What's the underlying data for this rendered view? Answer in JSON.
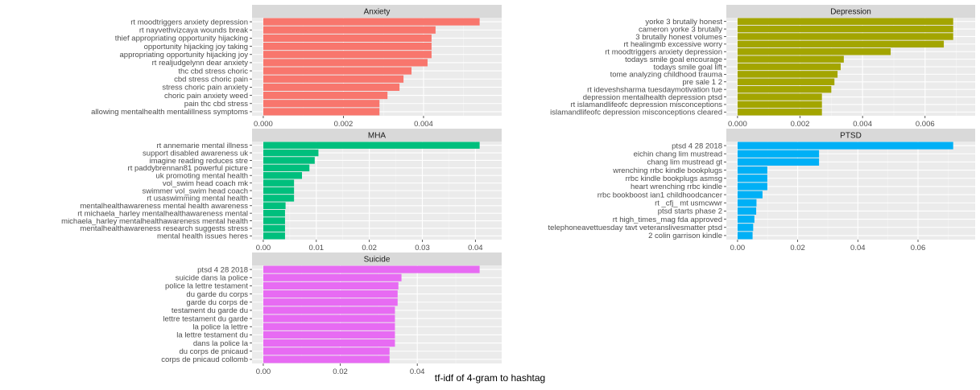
{
  "x_axis_title": "tf-idf of 4-gram to hashtag",
  "chart_data": {
    "type": "bar",
    "orientation": "horizontal",
    "facet_layout": "3 rows x 2 columns, free scales",
    "xlabel": "tf-idf of 4-gram to hashtag",
    "ylabel": "",
    "grid": true,
    "legend": "none",
    "panels": [
      {
        "title": "Anxiety",
        "color": "#F8766D",
        "xlim": [
          0,
          0.0054
        ],
        "ticks": [
          0,
          0.002,
          0.004
        ],
        "tick_labels": [
          "0.000",
          "0.002",
          "0.004"
        ],
        "categories": [
          "rt moodtriggers anxiety depression",
          "rt nayvethvizcaya wounds break",
          "thief appropriating opportunity hijacking",
          "opportunity hijacking joy taking",
          "appropriating opportunity hijacking joy",
          "rt realjudgelynn dear anxiety",
          "thc cbd stress choric",
          "cbd stress choric pain",
          "stress choric pain anxiety",
          "choric pain anxiety weed",
          "pain thc cbd stress",
          "allowing mentalhealth mentalillness symptoms"
        ],
        "values": [
          0.0054,
          0.0043,
          0.0042,
          0.0042,
          0.0042,
          0.0041,
          0.0037,
          0.0035,
          0.0034,
          0.0031,
          0.0029,
          0.0029
        ]
      },
      {
        "title": "Depression",
        "color": "#A3A500",
        "xlim": [
          0,
          0.0069
        ],
        "ticks": [
          0,
          0.002,
          0.004,
          0.006
        ],
        "tick_labels": [
          "0.000",
          "0.002",
          "0.004",
          "0.006"
        ],
        "categories": [
          "yorke 3 brutally honest",
          "cameron yorke 3 brutally",
          "3 brutally honest volumes",
          "rt healingmb excessive worry",
          "rt moodtriggers anxiety depression",
          "todays smile goal encourage",
          "todays smile goal lift",
          "tome analyzing childhood trauma",
          "pre sale 1 2",
          "rt ideveshsharma tuesdaymotivation tue",
          "depression mentalhealth depression ptsd",
          "rt islamandlifeofc depression misconceptions",
          "islamandlifeofc depression misconceptions cleared"
        ],
        "values": [
          0.0069,
          0.0069,
          0.0069,
          0.0066,
          0.0049,
          0.0034,
          0.0033,
          0.0032,
          0.0031,
          0.003,
          0.0027,
          0.0027,
          0.0027
        ]
      },
      {
        "title": "MHA",
        "color": "#00BF7D",
        "xlim": [
          0,
          0.0408
        ],
        "ticks": [
          0,
          0.01,
          0.02,
          0.03,
          0.04
        ],
        "tick_labels": [
          "0.00",
          "0.01",
          "0.02",
          "0.03",
          "0.04"
        ],
        "categories": [
          "rt annemarie mental illness",
          "support disabled awareness uk",
          "imagine reading reduces stre",
          "rt paddybrennan81 powerful picture",
          "uk promoting mental health",
          "vol_swim head coach mk",
          "swimmer vol_swim head coach",
          "rt usaswimming mental health",
          "mentalhealthawareness mental health awareness",
          "rt michaela_harley mentalhealthawareness mental",
          "michaela_harley mentalhealthawareness mental health",
          "mentalhealthawareness research suggests stress",
          "mental health issues heres"
        ],
        "values": [
          0.0408,
          0.0104,
          0.0097,
          0.0087,
          0.0073,
          0.0058,
          0.0058,
          0.0058,
          0.0042,
          0.0041,
          0.0041,
          0.0041,
          0.0041
        ]
      },
      {
        "title": "PTSD",
        "color": "#00B0F6",
        "xlim": [
          0,
          0.0717
        ],
        "ticks": [
          0,
          0.02,
          0.04,
          0.06
        ],
        "tick_labels": [
          "0.00",
          "0.02",
          "0.04",
          "0.06"
        ],
        "categories": [
          "ptsd 4 28 2018",
          "eichin chang lim mustread",
          "chang lim mustread gt",
          "wrenching rrbc kindle bookplugs",
          "rrbc kindle bookplugs asmsg",
          "heart wrenching rrbc kindle",
          "rrbc bookboost ian1 childhoodcancer",
          "rt _cfj_ mt usmcwwr",
          "ptsd starts phase 2",
          "rt high_times_mag fda approved",
          "telephoneavettuesday tavt veteranslivesmatter ptsd",
          "2 colin garrison kindle"
        ],
        "values": [
          0.0717,
          0.0271,
          0.0271,
          0.0099,
          0.0099,
          0.0099,
          0.0083,
          0.0063,
          0.0062,
          0.0056,
          0.0052,
          0.005
        ]
      },
      {
        "title": "Suicide",
        "color": "#E76BF3",
        "xlim": [
          0,
          0.0562
        ],
        "ticks": [
          0,
          0.02,
          0.04
        ],
        "tick_labels": [
          "0.00",
          "0.02",
          "0.04"
        ],
        "categories": [
          "ptsd 4 28 2018",
          "suicide dans la police",
          "police la lettre testament",
          "du garde du corps",
          "garde du corps de",
          "testament du garde du",
          "lettre testament du garde",
          "la police la lettre",
          "la lettre testament du",
          "dans la police la",
          "du corps de pnicaud",
          "corps de pnicaud collomb"
        ],
        "values": [
          0.0562,
          0.0359,
          0.0351,
          0.0349,
          0.0349,
          0.0342,
          0.0342,
          0.0342,
          0.0342,
          0.0342,
          0.0328,
          0.0328
        ]
      }
    ]
  }
}
